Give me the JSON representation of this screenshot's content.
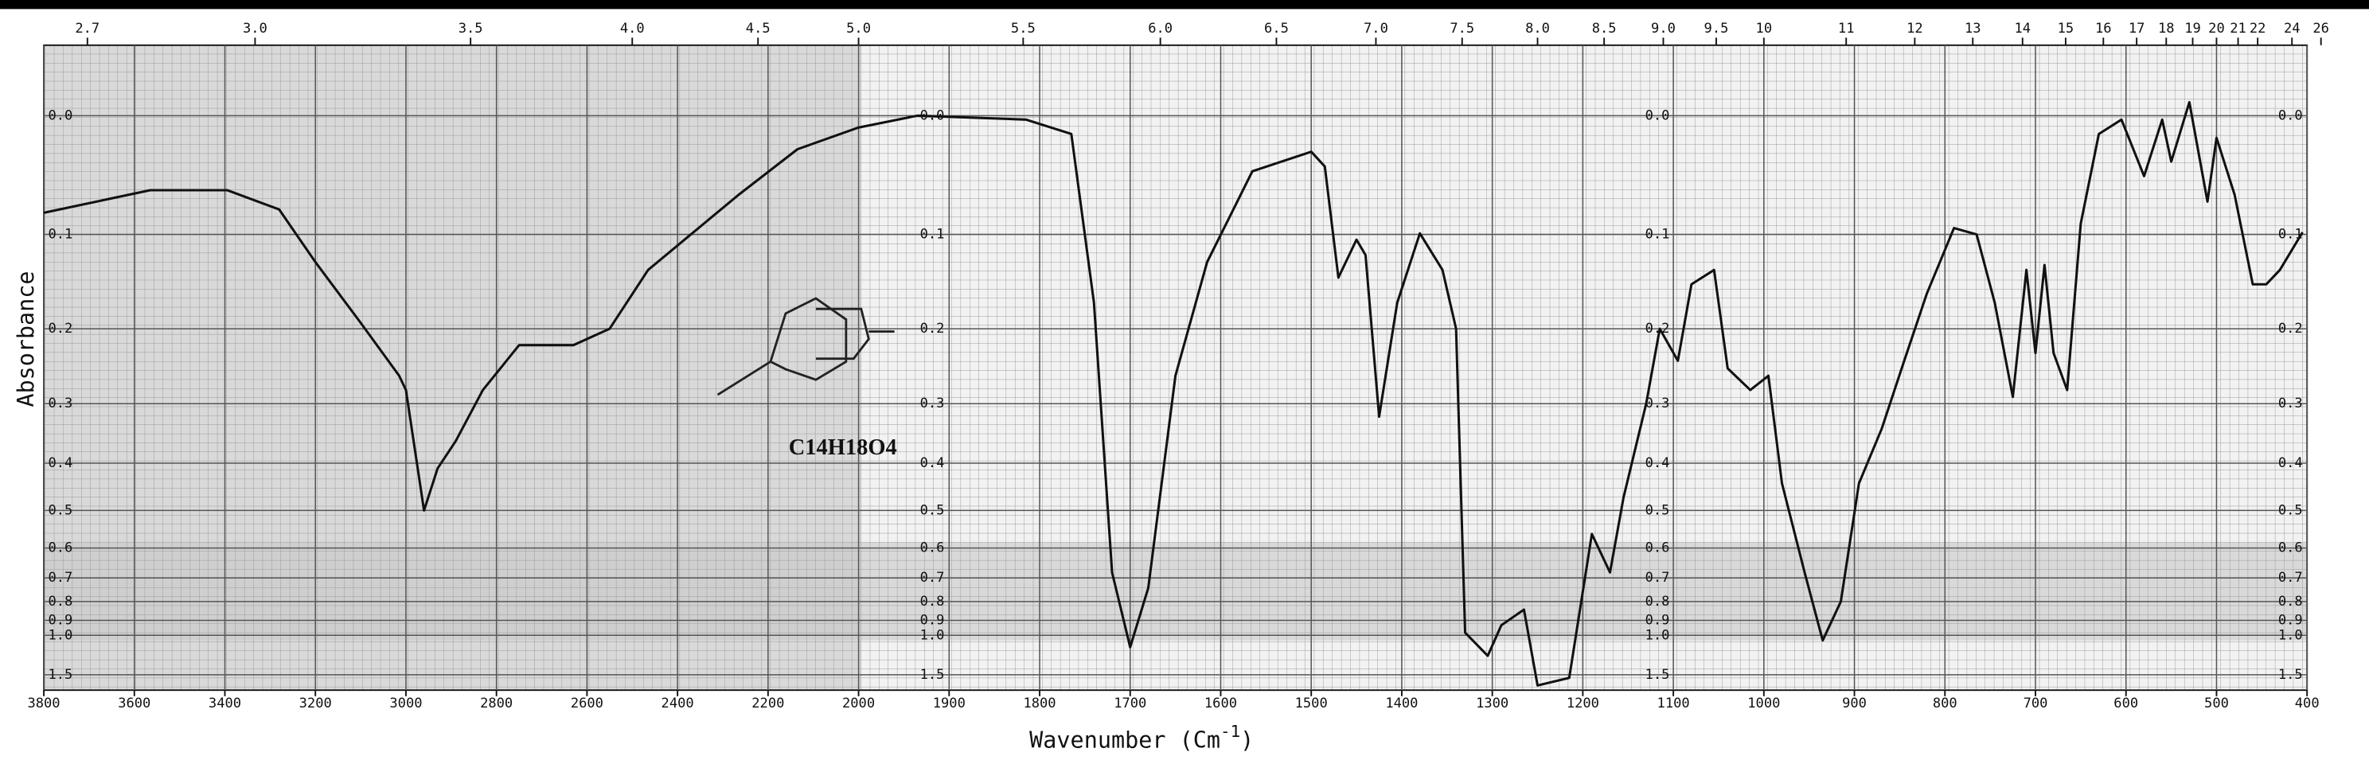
{
  "chart_data": {
    "type": "line",
    "y_label": "Absorbance",
    "x_label": "Wavenumber (Cm",
    "x_label_sup": "-1",
    "x_label_end": ")",
    "annotations": [
      "C14H18O4"
    ],
    "color": "#111111",
    "x_scale_change": 2000,
    "y_scale": "transmittance",
    "grid": true,
    "xlim": [
      3800,
      400
    ],
    "ylim": [
      -0.05,
      2.3
    ],
    "xticks": [
      3800,
      3600,
      3400,
      3200,
      3000,
      2800,
      2600,
      2400,
      2200,
      2000,
      1900,
      1800,
      1700,
      1600,
      1500,
      1400,
      1300,
      1200,
      1100,
      1000,
      900,
      800,
      700,
      600,
      500,
      400
    ],
    "x2ticks": [
      2.7,
      {
        "value": 3,
        "label": "3.0"
      },
      3.5,
      {
        "value": 4,
        "label": "4.0"
      },
      4.5,
      {
        "value": 5,
        "label": "5.0"
      },
      5.5,
      {
        "value": 6,
        "label": "6.0"
      },
      6.5,
      {
        "value": 7,
        "label": "7.0"
      },
      7.5,
      {
        "value": 8,
        "label": "8.0"
      },
      8.5,
      {
        "value": 9,
        "label": "9.0"
      },
      9.5,
      10,
      11,
      12,
      13,
      14,
      15,
      16,
      17,
      18,
      19,
      20,
      21,
      22,
      24,
      26
    ],
    "yticks": [
      {
        "value": 0,
        "label": "0.0"
      },
      0.1,
      0.2,
      0.3,
      0.4,
      0.5,
      0.6,
      0.7,
      0.8,
      0.9,
      {
        "value": 1,
        "label": "1.0"
      },
      1.5
    ],
    "x": [
      3800,
      3565,
      3395,
      3280,
      3200,
      3100,
      3015,
      3000,
      2960,
      2930,
      2890,
      2830,
      2750,
      2630,
      2550,
      2465,
      2365,
      2265,
      2135,
      2000,
      1935,
      1815,
      1765,
      1740,
      1720,
      1700,
      1680,
      1650,
      1615,
      1565,
      1500,
      1485,
      1470,
      1450,
      1440,
      1425,
      1405,
      1380,
      1355,
      1340,
      1330,
      1305,
      1290,
      1265,
      1250,
      1215,
      1190,
      1170,
      1155,
      1130,
      1115,
      1095,
      1080,
      1055,
      1040,
      1015,
      995,
      980,
      955,
      935,
      915,
      895,
      870,
      845,
      820,
      790,
      765,
      745,
      725,
      710,
      700,
      690,
      680,
      665,
      650,
      630,
      605,
      580,
      560,
      550,
      530,
      510,
      500,
      480,
      460,
      445,
      430,
      405
    ],
    "values": [
      0.08,
      0.06,
      0.06,
      0.077,
      0.127,
      0.193,
      0.26,
      0.28,
      0.5,
      0.41,
      0.36,
      0.28,
      0.22,
      0.22,
      0.2,
      0.135,
      0.098,
      0.064,
      0.026,
      0.009,
      0,
      0.003,
      0.014,
      0.17,
      0.68,
      1.1,
      0.74,
      0.26,
      0.127,
      0.044,
      0.028,
      0.04,
      0.143,
      0.105,
      0.12,
      0.32,
      0.17,
      0.099,
      0.135,
      0.2,
      0.98,
      1.19,
      0.93,
      0.84,
      1.88,
      1.58,
      0.56,
      0.68,
      0.47,
      0.3,
      0.2,
      0.24,
      0.15,
      0.135,
      0.25,
      0.28,
      0.26,
      0.44,
      0.68,
      1.04,
      0.8,
      0.44,
      0.34,
      0.24,
      0.16,
      0.094,
      0.1,
      0.17,
      0.29,
      0.135,
      0.23,
      0.13,
      0.23,
      0.28,
      0.09,
      0.014,
      0.003,
      0.048,
      0.003,
      0.036,
      -0.01,
      0.07,
      0.017,
      0.064,
      0.15,
      0.15,
      0.135,
      0.098
    ]
  }
}
